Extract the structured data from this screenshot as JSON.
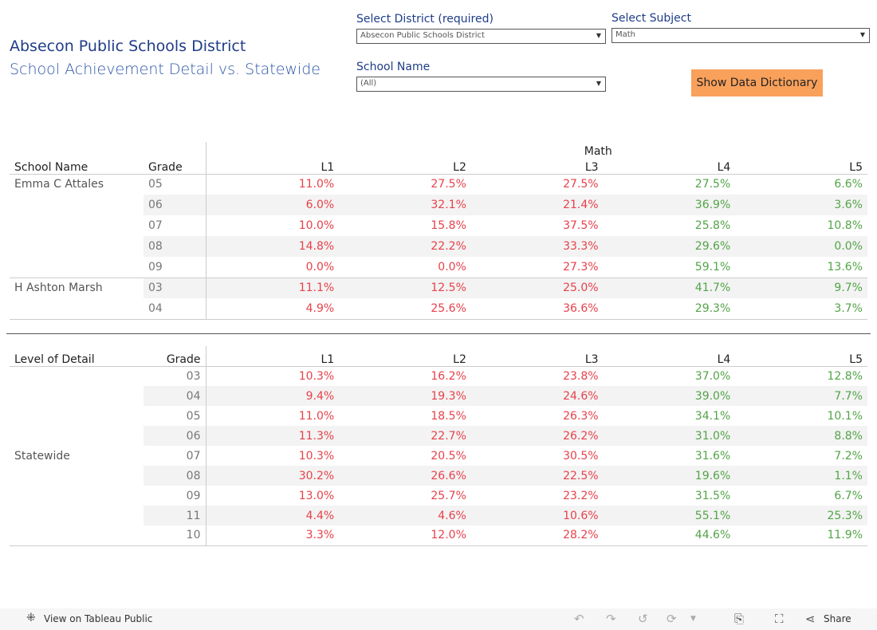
{
  "header": {
    "title": "Absecon Public Schools District",
    "subtitle": "School Achievement Detail vs. Statewide"
  },
  "filters": {
    "district": {
      "label": "Select District (required)",
      "value": "Absecon Public Schools District"
    },
    "subject": {
      "label": "Select Subject",
      "value": "Math"
    },
    "school": {
      "label": "School Name",
      "value": "(All)"
    }
  },
  "dictionary_button": "Show Data Dictionary",
  "colors": {
    "low_levels": "#e8414a",
    "high_levels": "#52a447",
    "button": "#f9a05b"
  },
  "school_table": {
    "subject": "Math",
    "columns": [
      "School Name",
      "Grade",
      "L1",
      "L2",
      "L3",
      "L4",
      "L5"
    ],
    "rows": [
      {
        "school": "Emma C Attales",
        "grade": "05",
        "values": [
          "11.0%",
          "27.5%",
          "27.5%",
          "27.5%",
          "6.6%"
        ]
      },
      {
        "school": "",
        "grade": "06",
        "values": [
          "6.0%",
          "32.1%",
          "21.4%",
          "36.9%",
          "3.6%"
        ]
      },
      {
        "school": "",
        "grade": "07",
        "values": [
          "10.0%",
          "15.8%",
          "37.5%",
          "25.8%",
          "10.8%"
        ]
      },
      {
        "school": "",
        "grade": "08",
        "values": [
          "14.8%",
          "22.2%",
          "33.3%",
          "29.6%",
          "0.0%"
        ]
      },
      {
        "school": "",
        "grade": "09",
        "values": [
          "0.0%",
          "0.0%",
          "27.3%",
          "59.1%",
          "13.6%"
        ]
      },
      {
        "school": "H Ashton Marsh",
        "grade": "03",
        "values": [
          "11.1%",
          "12.5%",
          "25.0%",
          "41.7%",
          "9.7%"
        ]
      },
      {
        "school": "",
        "grade": "04",
        "values": [
          "4.9%",
          "25.6%",
          "36.6%",
          "29.3%",
          "3.7%"
        ]
      }
    ]
  },
  "state_table": {
    "columns": [
      "Level of Detail",
      "Grade",
      "L1",
      "L2",
      "L3",
      "L4",
      "L5"
    ],
    "level": "Statewide",
    "rows": [
      {
        "grade": "03",
        "values": [
          "10.3%",
          "16.2%",
          "23.8%",
          "37.0%",
          "12.8%"
        ]
      },
      {
        "grade": "04",
        "values": [
          "9.4%",
          "19.3%",
          "24.6%",
          "39.0%",
          "7.7%"
        ]
      },
      {
        "grade": "05",
        "values": [
          "11.0%",
          "18.5%",
          "26.3%",
          "34.1%",
          "10.1%"
        ]
      },
      {
        "grade": "06",
        "values": [
          "11.3%",
          "22.7%",
          "26.2%",
          "31.0%",
          "8.8%"
        ]
      },
      {
        "grade": "07",
        "values": [
          "10.3%",
          "20.5%",
          "30.5%",
          "31.6%",
          "7.2%"
        ]
      },
      {
        "grade": "08",
        "values": [
          "30.2%",
          "26.6%",
          "22.5%",
          "19.6%",
          "1.1%"
        ]
      },
      {
        "grade": "09",
        "values": [
          "13.0%",
          "25.7%",
          "23.2%",
          "31.5%",
          "6.7%"
        ]
      },
      {
        "grade": "11",
        "values": [
          "4.4%",
          "4.6%",
          "10.6%",
          "55.1%",
          "25.3%"
        ]
      },
      {
        "grade": "10",
        "values": [
          "3.3%",
          "12.0%",
          "28.2%",
          "44.6%",
          "11.9%"
        ]
      }
    ]
  },
  "footer": {
    "view_label": "View on Tableau Public",
    "share_label": "Share"
  }
}
